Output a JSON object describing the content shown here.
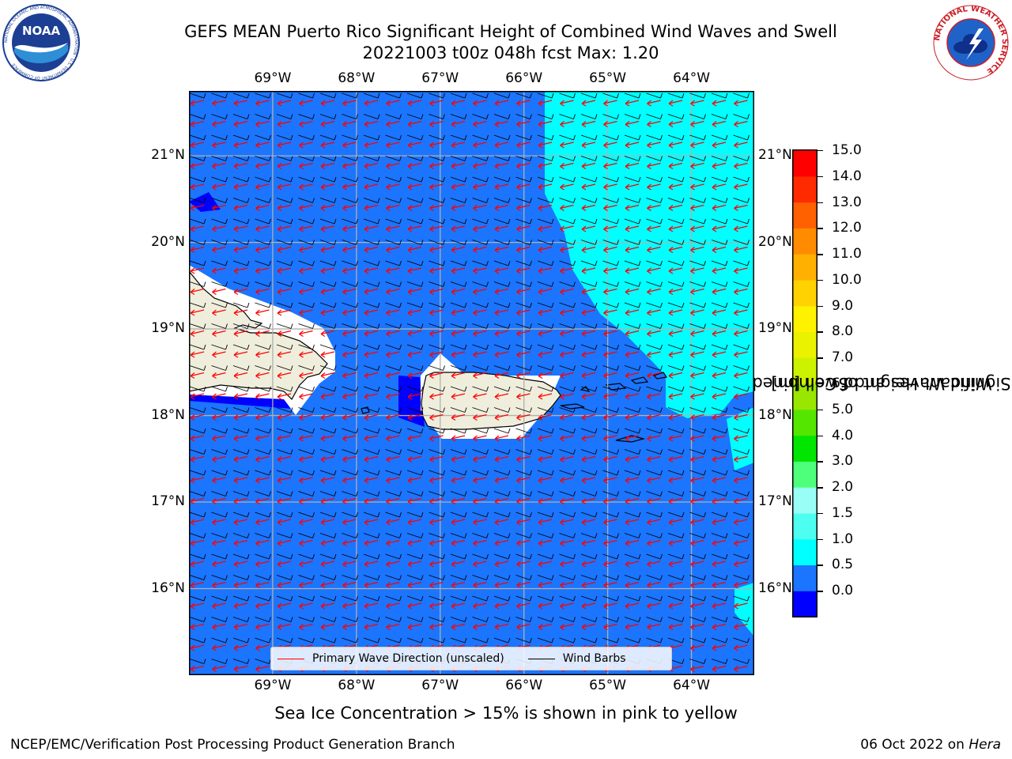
{
  "title": {
    "line1": "GEFS MEAN Puerto Rico Significant Height of Combined Wind Waves and Swell",
    "line2": "20221003 t00z 048h fcst   Max: 1.20"
  },
  "logos": {
    "noaa": {
      "text": "NOAA",
      "ring_text": "NATIONAL OCEANIC AND ATMOSPHERIC ADMINISTRATION · U.S. DEPARTMENT OF COMMERCE"
    },
    "nws": {
      "ring_text": "NATIONAL WEATHER SERVICE"
    }
  },
  "map": {
    "lon_labels": [
      "69°W",
      "68°W",
      "67°W",
      "66°W",
      "65°W",
      "64°W"
    ],
    "lat_labels": [
      "21°N",
      "20°N",
      "19°N",
      "18°N",
      "17°N",
      "16°N"
    ],
    "extent": {
      "lon": [
        -70.0,
        -63.25
      ],
      "lat": [
        15.0,
        21.75
      ]
    },
    "colors": {
      "ocean": "#1b75ff",
      "cyan": "#00ffff",
      "blue": "#0000ff",
      "land": "#efeedc",
      "wave_arrow": "#ff0000",
      "barb": "#000000"
    }
  },
  "legend": {
    "items": [
      {
        "label": "Primary Wave Direction (unscaled)",
        "color": "#ff0000"
      },
      {
        "label": "Wind Barbs",
        "color": "#000000"
      }
    ]
  },
  "colorbar": {
    "label_line1": "Significant Height of Combined",
    "label_line2": "Wind Waves and Swell [m]",
    "ticks": [
      "15.0",
      "14.0",
      "13.0",
      "12.0",
      "11.0",
      "10.0",
      "9.0",
      "8.0",
      "7.0",
      "6.0",
      "5.0",
      "4.0",
      "3.0",
      "2.0",
      "1.5",
      "1.0",
      "0.5",
      "0.0"
    ],
    "colors_bottom_to_top": [
      "#0000ff",
      "#1b75ff",
      "#00ffff",
      "#4dfff0",
      "#99fff6",
      "#4dff7a",
      "#00e600",
      "#55e600",
      "#99e600",
      "#ccf200",
      "#eaf200",
      "#fff200",
      "#ffd200",
      "#ffb000",
      "#ff8c00",
      "#ff6000",
      "#ff2a00",
      "#ff0000"
    ]
  },
  "note": "Sea Ice Concentration > 15% is shown in pink to yellow",
  "footer": {
    "left": "NCEP/EMC/Verification Post Processing Product Generation Branch",
    "right_prefix": "06 Oct 2022 on ",
    "right_machine": "Hera"
  }
}
